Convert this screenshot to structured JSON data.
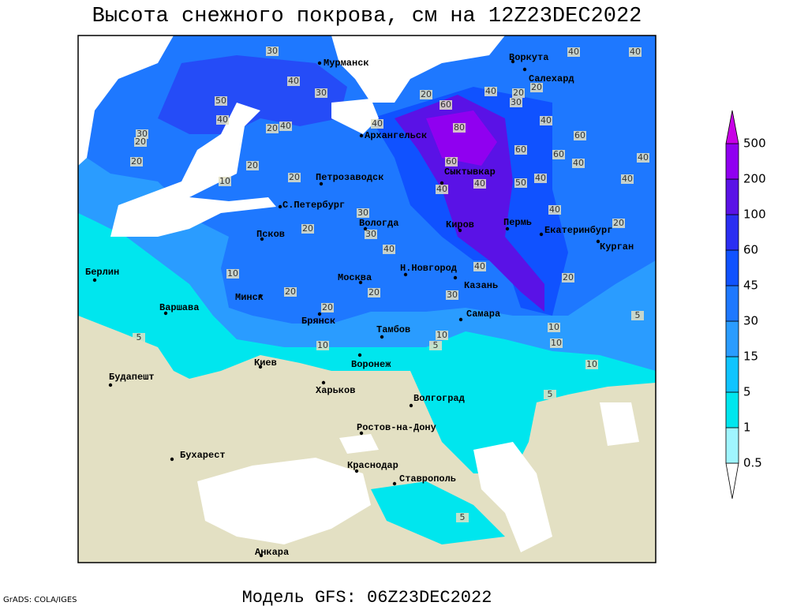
{
  "header": {
    "title": "Высота снежного покрова, см на 12Z23DEC2022"
  },
  "footer": {
    "model": "Модель GFS: 06Z23DEC2022",
    "credit": "GrADS: COLA/IGES"
  },
  "cities": [
    "Мурманск",
    "Архангельск",
    "Воркута",
    "Салехард",
    "Сыктывкар",
    "Петрозаводск",
    "С.Петербург",
    "Вологда",
    "Киров",
    "Пермь",
    "Екатеринбург",
    "Курган",
    "Псков",
    "Н.Новгород",
    "Казань",
    "Москва",
    "Минск",
    "Берлин",
    "Варшава",
    "Брянск",
    "Тамбов",
    "Самара",
    "Киев",
    "Воронеж",
    "Будапешт",
    "Харьков",
    "Волгоград",
    "Ростов-на-Дону",
    "Бухарест",
    "Краснодар",
    "Ставрополь",
    "Анкара"
  ],
  "contour_labels": [
    30,
    40,
    30,
    50,
    40,
    30,
    20,
    20,
    20,
    40,
    20,
    10,
    20,
    40,
    20,
    60,
    40,
    20,
    20,
    40,
    40,
    40,
    60,
    60,
    60,
    40,
    40,
    40,
    80,
    60,
    40,
    40,
    50,
    40,
    40,
    20,
    30,
    30,
    20,
    40,
    10,
    20,
    20,
    40,
    20,
    30,
    20,
    10,
    5,
    10,
    10,
    10,
    5,
    10,
    5,
    5,
    5,
    30
  ],
  "legend": {
    "levels": [
      0.5,
      1,
      5,
      15,
      30,
      45,
      60,
      100,
      200,
      500
    ],
    "colors": [
      "#ffffff",
      "#a0f5ff",
      "#00e6ee",
      "#10c4ff",
      "#2a9cff",
      "#1e78ff",
      "#1052ff",
      "#2a2ef2",
      "#5a12e6",
      "#9000f0",
      "#c800e6"
    ]
  }
}
